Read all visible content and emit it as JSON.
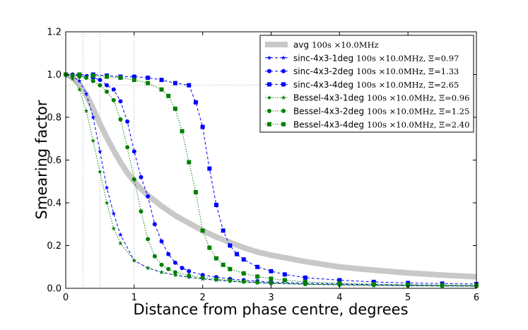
{
  "chart_data": {
    "type": "line",
    "title": "",
    "xlabel": "Distance from phase centre, degrees",
    "ylabel": "Smearing factor",
    "xlim": [
      0,
      6
    ],
    "ylim": [
      0,
      1.2
    ],
    "xticks": [
      "0",
      "1",
      "2",
      "3",
      "4",
      "5",
      "6"
    ],
    "yticks": [
      "0.0",
      "0.2",
      "0.4",
      "0.6",
      "0.8",
      "1.0",
      "1.2"
    ],
    "grid": false,
    "legend_position": "top-right",
    "reference_lines": {
      "vertical_x": [
        0.25,
        0.5,
        1.0
      ],
      "horizontal_y": [
        0.95
      ]
    },
    "series": [
      {
        "name": "avg",
        "extra": "100s ×10.0MHz",
        "color": "#c8c8c8",
        "style": "solid-thick",
        "marker": "none",
        "x": [
          0,
          0.1,
          0.2,
          0.3,
          0.4,
          0.5,
          0.6,
          0.7,
          0.8,
          0.9,
          1.0,
          1.1,
          1.2,
          1.4,
          1.6,
          1.8,
          2.0,
          2.2,
          2.4,
          2.6,
          2.8,
          3.0,
          3.5,
          4.0,
          4.5,
          5.0,
          5.5,
          6.0
        ],
        "y": [
          1.0,
          0.985,
          0.955,
          0.905,
          0.84,
          0.77,
          0.705,
          0.645,
          0.59,
          0.54,
          0.5,
          0.465,
          0.435,
          0.385,
          0.34,
          0.305,
          0.27,
          0.24,
          0.215,
          0.19,
          0.17,
          0.155,
          0.125,
          0.1,
          0.085,
          0.072,
          0.062,
          0.054
        ]
      },
      {
        "name": "sinc-4x3-1deg",
        "extra": "100s ×10.0MHz,  Ξ=0.97",
        "color": "#0000ff",
        "style": "dashed",
        "marker": "star",
        "x": [
          0,
          0.1,
          0.2,
          0.3,
          0.4,
          0.5,
          0.6,
          0.7,
          0.8,
          1.0,
          1.2,
          1.4,
          1.6,
          1.8,
          2.0,
          2.2,
          2.4,
          2.6,
          2.8,
          3.0,
          3.5,
          4.0,
          4.5,
          5.0,
          5.5,
          6.0
        ],
        "y": [
          1.0,
          0.99,
          0.97,
          0.91,
          0.8,
          0.64,
          0.47,
          0.35,
          0.25,
          0.13,
          0.095,
          0.075,
          0.062,
          0.052,
          0.044,
          0.038,
          0.033,
          0.029,
          0.026,
          0.023,
          0.019,
          0.016,
          0.014,
          0.012,
          0.011,
          0.01
        ]
      },
      {
        "name": "sinc-4x3-2deg",
        "extra": "100s ×10.0MHz,  Ξ=1.33",
        "color": "#0000ff",
        "style": "dashed",
        "marker": "circle",
        "x": [
          0,
          0.1,
          0.2,
          0.3,
          0.4,
          0.5,
          0.6,
          0.7,
          0.8,
          0.9,
          1.0,
          1.1,
          1.2,
          1.3,
          1.4,
          1.5,
          1.6,
          1.7,
          1.8,
          2.0,
          2.2,
          2.4,
          2.6,
          2.8,
          3.0,
          3.5,
          4.0,
          4.5,
          5.0,
          5.5,
          6.0
        ],
        "y": [
          1.0,
          1.0,
          0.995,
          0.99,
          0.985,
          0.975,
          0.95,
          0.93,
          0.875,
          0.78,
          0.64,
          0.52,
          0.43,
          0.3,
          0.22,
          0.16,
          0.12,
          0.095,
          0.08,
          0.062,
          0.052,
          0.044,
          0.038,
          0.033,
          0.029,
          0.024,
          0.02,
          0.017,
          0.015,
          0.013,
          0.012
        ]
      },
      {
        "name": "sinc-4x3-4deg",
        "extra": "100s ×10.0MHz,  Ξ=2.65",
        "color": "#0000ff",
        "style": "dashed",
        "marker": "square",
        "x": [
          0,
          0.2,
          0.4,
          0.6,
          0.8,
          1.0,
          1.2,
          1.4,
          1.6,
          1.8,
          1.9,
          2.0,
          2.1,
          2.2,
          2.3,
          2.4,
          2.5,
          2.6,
          2.8,
          3.0,
          3.2,
          3.5,
          4.0,
          4.5,
          5.0,
          5.5,
          6.0
        ],
        "y": [
          1.0,
          1.0,
          1.0,
          0.995,
          0.99,
          0.99,
          0.985,
          0.975,
          0.96,
          0.95,
          0.87,
          0.755,
          0.56,
          0.39,
          0.27,
          0.2,
          0.16,
          0.135,
          0.1,
          0.08,
          0.065,
          0.05,
          0.038,
          0.03,
          0.025,
          0.022,
          0.02
        ]
      },
      {
        "name": "Bessel-4x3-1deg",
        "extra": "100s ×10.0MHz,  Ξ=0.96",
        "color": "#008000",
        "style": "dotted",
        "marker": "star",
        "x": [
          0,
          0.1,
          0.2,
          0.3,
          0.4,
          0.5,
          0.6,
          0.7,
          0.8,
          1.0,
          1.2,
          1.4,
          1.6,
          1.8,
          2.0,
          2.2,
          2.4,
          2.6,
          2.8,
          3.0,
          3.5,
          4.0,
          4.5,
          5.0,
          5.5,
          6.0
        ],
        "y": [
          1.0,
          0.98,
          0.93,
          0.83,
          0.69,
          0.545,
          0.4,
          0.28,
          0.21,
          0.13,
          0.095,
          0.075,
          0.062,
          0.052,
          0.044,
          0.038,
          0.033,
          0.029,
          0.026,
          0.023,
          0.019,
          0.016,
          0.014,
          0.012,
          0.011,
          0.01
        ]
      },
      {
        "name": "Bessel-4x3-2deg",
        "extra": "100s ×10.0MHz,  Ξ=1.25",
        "color": "#008000",
        "style": "dotted",
        "marker": "circle",
        "x": [
          0,
          0.1,
          0.2,
          0.3,
          0.4,
          0.5,
          0.6,
          0.7,
          0.8,
          0.9,
          1.0,
          1.1,
          1.2,
          1.3,
          1.4,
          1.5,
          1.6,
          1.8,
          2.0,
          2.2,
          2.4,
          2.6,
          2.8,
          3.0,
          3.5,
          4.0,
          4.5,
          5.0,
          5.5,
          6.0
        ],
        "y": [
          1.0,
          0.995,
          0.99,
          0.985,
          0.97,
          0.95,
          0.92,
          0.88,
          0.79,
          0.66,
          0.51,
          0.36,
          0.23,
          0.15,
          0.11,
          0.09,
          0.075,
          0.06,
          0.05,
          0.043,
          0.037,
          0.032,
          0.028,
          0.025,
          0.02,
          0.017,
          0.015,
          0.013,
          0.012,
          0.011
        ]
      },
      {
        "name": "Bessel-4x3-4deg",
        "extra": "100s ×10.0MHz,  Ξ=2.40",
        "color": "#008000",
        "style": "dotted",
        "marker": "square",
        "x": [
          0,
          0.2,
          0.4,
          0.6,
          0.8,
          1.0,
          1.2,
          1.4,
          1.5,
          1.6,
          1.7,
          1.8,
          1.9,
          2.0,
          2.1,
          2.2,
          2.3,
          2.4,
          2.6,
          2.8,
          3.0,
          3.2,
          3.5,
          4.0,
          4.5,
          5.0,
          5.5,
          6.0
        ],
        "y": [
          1.0,
          1.0,
          0.995,
          0.99,
          0.985,
          0.975,
          0.96,
          0.93,
          0.9,
          0.84,
          0.735,
          0.59,
          0.45,
          0.27,
          0.19,
          0.14,
          0.11,
          0.09,
          0.07,
          0.055,
          0.045,
          0.038,
          0.03,
          0.024,
          0.02,
          0.017,
          0.015,
          0.014
        ]
      }
    ]
  }
}
